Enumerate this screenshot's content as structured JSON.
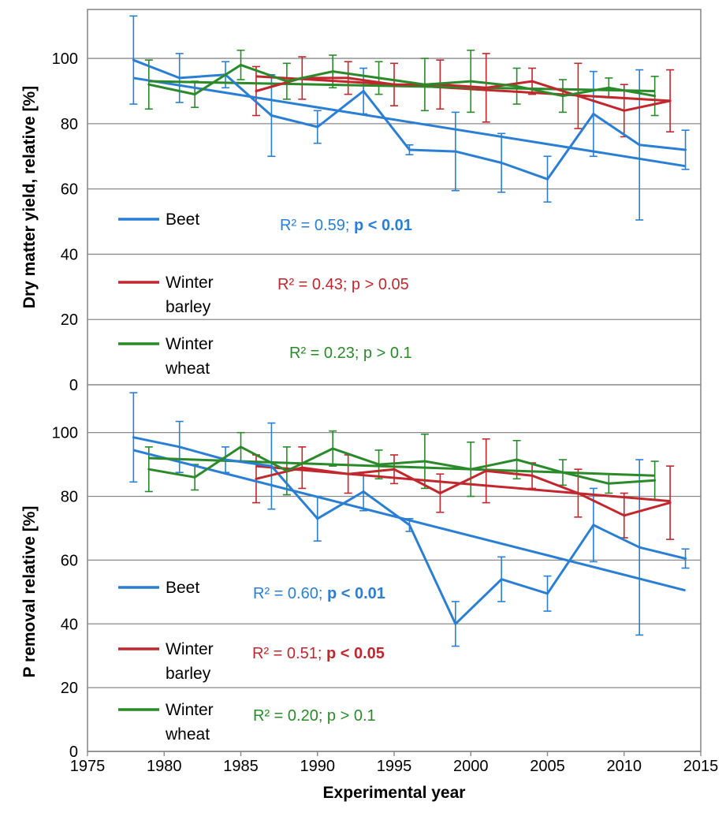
{
  "chart_data": {
    "type": "line",
    "xlabel": "Experimental year",
    "ylabel": "",
    "x_ticks": [
      "1975",
      "1980",
      "1985",
      "1990",
      "1995",
      "2000",
      "2005",
      "2010",
      "2015"
    ],
    "xlim": [
      1975,
      2015
    ],
    "colors": {
      "beet": "#2a7fd4",
      "barley": "#c1272d",
      "wheat": "#2a8a2a"
    },
    "panels": [
      {
        "ylabel": "Dry matter yield, relative [%]",
        "ylim": [
          0,
          115
        ],
        "y_ticks": [
          "0",
          "20",
          "40",
          "60",
          "80",
          "100"
        ],
        "grid": true,
        "legend": [
          "Beet",
          "Winter barley",
          "Winter wheat"
        ],
        "annotations": [
          {
            "pre": "R² = 0.59; ",
            "bold": "p < 0.01",
            "series": "beet"
          },
          {
            "pre": "R² = 0.43; p > 0.05",
            "bold": "",
            "series": "barley"
          },
          {
            "pre": "R² = 0.23; p > 0.1",
            "bold": "",
            "series": "wheat"
          }
        ],
        "series": [
          {
            "key": "beet",
            "name": "Beet",
            "x": [
              1978,
              1981,
              1984,
              1987,
              1990,
              1993,
              1996,
              1999,
              2002,
              2005,
              2008,
              2011,
              2014
            ],
            "y": [
              99.5,
              94,
              95,
              82.5,
              79,
              90,
              72,
              71.5,
              68,
              63,
              83,
              73.5,
              72
            ],
            "err": [
              13.5,
              7.5,
              4,
              12.5,
              5,
              7,
              1.5,
              12,
              9,
              7,
              13,
              23,
              6
            ],
            "trend": [
              [
                1978,
                94
              ],
              [
                2014,
                67
              ]
            ]
          },
          {
            "key": "barley",
            "name": "Winter barley",
            "x": [
              1986,
              1989,
              1992,
              1995,
              1998,
              2001,
              2004,
              2007,
              2010,
              2013
            ],
            "y": [
              90,
              94,
              94,
              92,
              92,
              91,
              93,
              88.5,
              84,
              87
            ],
            "err": [
              7.5,
              6.5,
              5,
              6.5,
              7.5,
              10.5,
              4,
              10,
              8,
              9.5
            ],
            "trend": [
              [
                1986,
                94.5
              ],
              [
                2013,
                87
              ]
            ]
          },
          {
            "key": "wheat",
            "name": "Winter wheat",
            "x": [
              1979,
              1982,
              1985,
              1988,
              1991,
              1994,
              1997,
              2000,
              2003,
              2006,
              2009,
              2012
            ],
            "y": [
              92,
              89,
              98,
              93,
              96,
              94,
              92,
              93,
              91.5,
              88.5,
              91,
              88.5
            ],
            "err": [
              7.5,
              4,
              4.5,
              5.5,
              5,
              5,
              8,
              9.5,
              5.5,
              5,
              3,
              6
            ],
            "trend": [
              [
                1979,
                93
              ],
              [
                2012,
                90
              ]
            ]
          }
        ]
      },
      {
        "ylabel": "P removal relative [%]",
        "ylim": [
          0,
          115
        ],
        "y_ticks": [
          "0",
          "20",
          "40",
          "60",
          "80",
          "100"
        ],
        "grid": true,
        "legend": [
          "Beet",
          "Winter barley",
          "Winter wheat"
        ],
        "annotations": [
          {
            "pre": "R² = 0.60; ",
            "bold": "p < 0.01",
            "series": "beet"
          },
          {
            "pre": "R² = 0.51; ",
            "bold": "p < 0.05",
            "series": "barley"
          },
          {
            "pre": "R² = 0.20;  p > 0.1",
            "bold": "",
            "series": "wheat"
          }
        ],
        "series": [
          {
            "key": "beet",
            "name": "Beet",
            "x": [
              1978,
              1981,
              1984,
              1987,
              1990,
              1993,
              1996,
              1999,
              2002,
              2005,
              2008,
              2011,
              2014
            ],
            "y": [
              98.5,
              95.5,
              91.5,
              89.5,
              73,
              81.5,
              71,
              40,
              54,
              49.5,
              71,
              64,
              60.5
            ],
            "err": [
              14,
              8,
              4,
              13.5,
              7,
              6,
              2,
              7,
              7,
              5.5,
              11.5,
              27.5,
              3
            ],
            "trend": [
              [
                1978,
                94.5
              ],
              [
                2014,
                50.5
              ]
            ]
          },
          {
            "key": "barley",
            "name": "Winter barley",
            "x": [
              1986,
              1989,
              1992,
              1995,
              1998,
              2001,
              2004,
              2007,
              2010,
              2013
            ],
            "y": [
              85.5,
              89,
              87,
              88.5,
              81,
              88,
              86.5,
              81,
              74,
              78
            ],
            "err": [
              7.5,
              6.5,
              6,
              4.5,
              6,
              10,
              4,
              7.5,
              7,
              11.5
            ],
            "trend": [
              [
                1986,
                89.5
              ],
              [
                2013,
                78.5
              ]
            ]
          },
          {
            "key": "wheat",
            "name": "Winter wheat",
            "x": [
              1979,
              1982,
              1985,
              1988,
              1991,
              1994,
              1997,
              2000,
              2003,
              2006,
              2009,
              2012
            ],
            "y": [
              88.5,
              86,
              95.5,
              88,
              95,
              90,
              91,
              88.5,
              91.5,
              87.5,
              84,
              85
            ],
            "err": [
              7,
              4,
              4.5,
              7.5,
              5.5,
              4.5,
              8.5,
              8.5,
              6,
              4,
              3,
              6
            ],
            "trend": [
              [
                1979,
                92
              ],
              [
                2012,
                86.5
              ]
            ]
          }
        ]
      }
    ]
  }
}
